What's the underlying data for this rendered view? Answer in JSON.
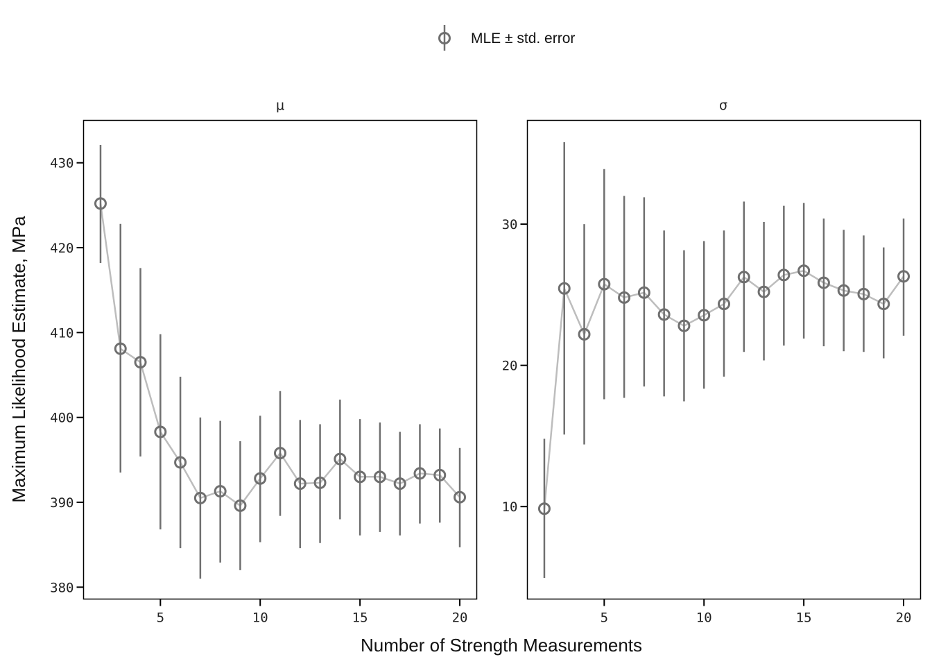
{
  "legend": {
    "label": "MLE ± std. error",
    "placement": "top-center"
  },
  "xlabel": "Number of Strength Measurements",
  "ylabel": "Maximum Likelihood Estimate, MPa",
  "colors": {
    "marker": "#6f6f6f",
    "errorbar": "#6f6f6f",
    "line": "#bdbdbd",
    "frame": "#000000"
  },
  "chart_data": [
    {
      "type": "scatter",
      "title": "μ",
      "x": [
        2,
        3,
        4,
        5,
        6,
        7,
        8,
        9,
        10,
        11,
        12,
        13,
        14,
        15,
        16,
        17,
        18,
        19,
        20
      ],
      "y": [
        425.2,
        408.1,
        406.5,
        398.3,
        394.7,
        390.5,
        391.3,
        389.6,
        392.8,
        395.8,
        392.2,
        392.3,
        395.1,
        393.0,
        393.0,
        392.2,
        393.4,
        393.2,
        390.6
      ],
      "err_low": [
        418.2,
        393.5,
        395.4,
        386.8,
        384.6,
        381.0,
        382.9,
        382.0,
        385.3,
        388.4,
        384.6,
        385.2,
        388.0,
        386.1,
        386.5,
        386.1,
        387.5,
        387.6,
        384.7
      ],
      "err_high": [
        432.1,
        422.8,
        417.6,
        409.8,
        404.8,
        400.0,
        399.6,
        397.2,
        400.2,
        403.1,
        399.7,
        399.2,
        402.1,
        399.8,
        399.4,
        398.3,
        399.2,
        398.7,
        396.4
      ],
      "xticks": [
        5,
        10,
        15,
        20
      ],
      "yticks": [
        380,
        390,
        400,
        410,
        420,
        430
      ],
      "xlim": [
        1.15,
        20.85
      ],
      "ylim": [
        378.6,
        435.0
      ],
      "grid": false
    },
    {
      "type": "scatter",
      "title": "σ",
      "x": [
        2,
        3,
        4,
        5,
        6,
        7,
        8,
        9,
        10,
        11,
        12,
        13,
        14,
        15,
        16,
        17,
        18,
        19,
        20
      ],
      "y": [
        9.85,
        25.45,
        22.2,
        25.75,
        24.8,
        25.15,
        23.6,
        22.8,
        23.55,
        24.35,
        26.25,
        25.2,
        26.4,
        26.7,
        25.85,
        25.3,
        25.05,
        24.35,
        26.3
      ],
      "err_low": [
        4.95,
        15.1,
        14.4,
        17.6,
        17.7,
        18.5,
        17.8,
        17.45,
        18.35,
        19.2,
        20.95,
        20.35,
        21.4,
        21.9,
        21.35,
        21.0,
        20.95,
        20.5,
        22.1
      ],
      "err_high": [
        14.8,
        35.8,
        30.0,
        33.9,
        32.0,
        31.9,
        29.55,
        28.15,
        28.8,
        29.55,
        31.6,
        30.15,
        31.3,
        31.5,
        30.4,
        29.6,
        29.2,
        28.35,
        30.4
      ],
      "xticks": [
        5,
        10,
        15,
        20
      ],
      "yticks": [
        10,
        20,
        30
      ],
      "xlim": [
        1.15,
        20.85
      ],
      "ylim": [
        3.45,
        37.35
      ],
      "grid": false
    }
  ]
}
